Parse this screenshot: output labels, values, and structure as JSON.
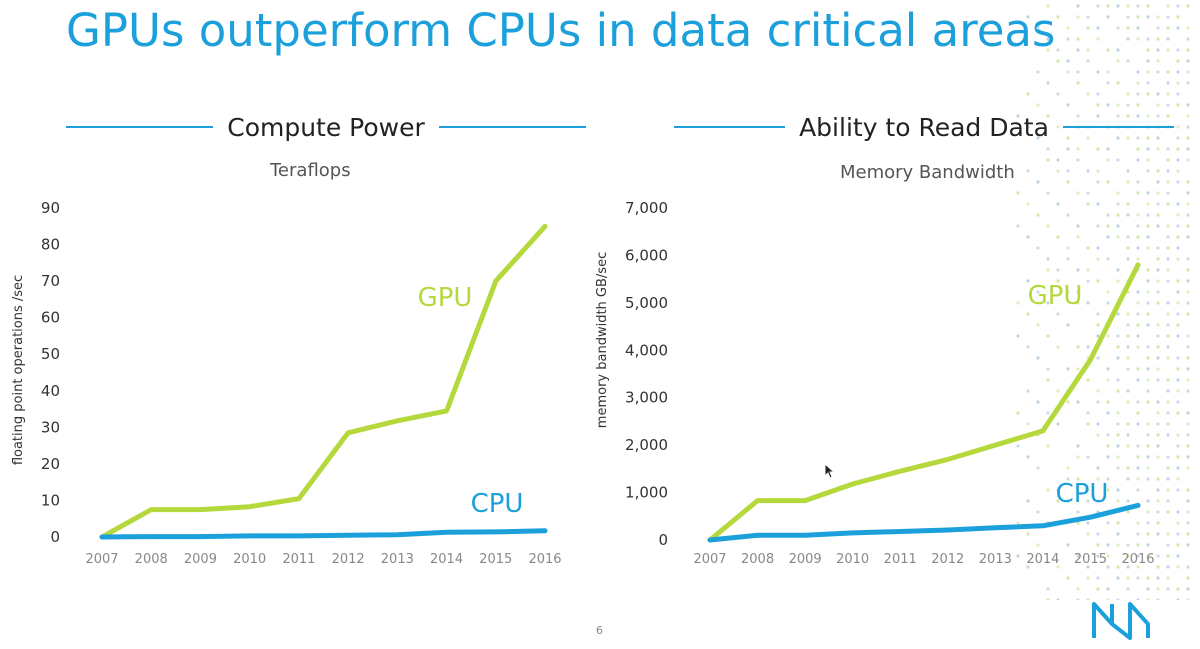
{
  "slide": {
    "title": "GPUs outperform CPUs in data critical areas",
    "page_number": "6"
  },
  "colors": {
    "accent": "#1ba0dc",
    "gpu": "#b5d93c",
    "cpu": "#1ba0dc"
  },
  "left_section": {
    "heading": "Compute Power",
    "subtitle": "Teraflops"
  },
  "right_section": {
    "heading": "Ability to Read Data",
    "subtitle": "Memory Bandwidth"
  },
  "chart_data": [
    {
      "type": "line",
      "title": "Teraflops",
      "xlabel": "",
      "ylabel": "floating point operations /sec",
      "x": [
        "2007",
        "2008",
        "2009",
        "2010",
        "2011",
        "2012",
        "2013",
        "2014",
        "2015",
        "2016"
      ],
      "ylim": [
        0,
        90
      ],
      "yticks": [
        0,
        10,
        20,
        30,
        40,
        50,
        60,
        70,
        80,
        90
      ],
      "ytick_labels": [
        "0",
        "10",
        "20",
        "30",
        "40",
        "50",
        "60",
        "70",
        "80",
        "90"
      ],
      "grid": false,
      "series": [
        {
          "name": "GPU",
          "color": "#b5d93c",
          "values": [
            0,
            7.5,
            7.5,
            8.3,
            10.5,
            28.5,
            31.8,
            34.5,
            70,
            85
          ]
        },
        {
          "name": "CPU",
          "color": "#1ba0dc",
          "values": [
            0,
            0.1,
            0.1,
            0.3,
            0.3,
            0.5,
            0.6,
            1.3,
            1.4,
            1.7
          ]
        }
      ]
    },
    {
      "type": "line",
      "title": "Memory Bandwidth",
      "xlabel": "",
      "ylabel": "memory bandwidth GB/sec",
      "x": [
        "2007",
        "2008",
        "2009",
        "2010",
        "2011",
        "2012",
        "2013",
        "2014",
        "2015",
        "2016"
      ],
      "ylim": [
        0,
        7000
      ],
      "yticks": [
        0,
        1000,
        2000,
        3000,
        4000,
        5000,
        6000,
        7000
      ],
      "ytick_labels": [
        "0",
        "1,000",
        "2,000",
        "3,000",
        "4,000",
        "5,000",
        "6,000",
        "7,000"
      ],
      "grid": false,
      "series": [
        {
          "name": "GPU",
          "color": "#b5d93c",
          "values": [
            0,
            830,
            830,
            1180,
            1450,
            1700,
            2000,
            2300,
            3800,
            5800
          ]
        },
        {
          "name": "CPU",
          "color": "#1ba0dc",
          "values": [
            0,
            100,
            100,
            150,
            180,
            210,
            260,
            300,
            480,
            730
          ]
        }
      ]
    }
  ]
}
